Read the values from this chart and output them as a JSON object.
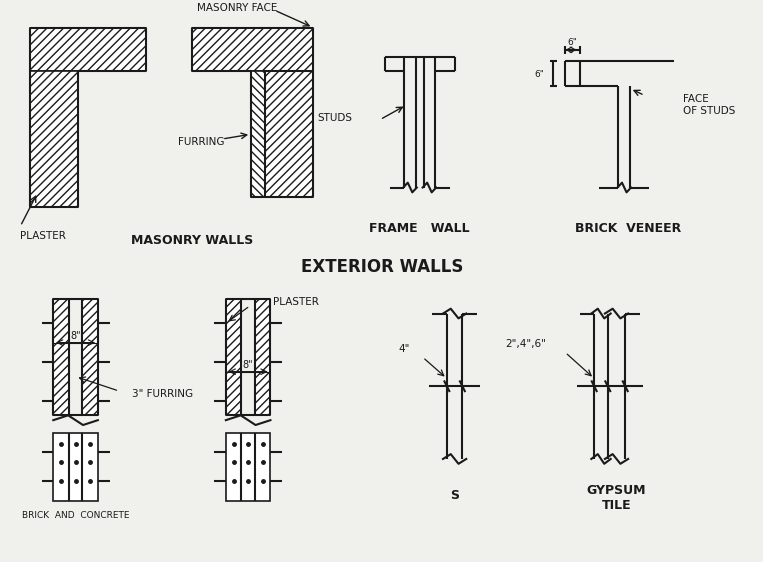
{
  "bg_color": "#f0f0ec",
  "line_color": "#1a1a1a",
  "title": "EXTERIOR WALLS",
  "labels": {
    "masonry_walls": "MASONRY WALLS",
    "frame_wall": "FRAME   WALL",
    "brick_veneer": "BRICK  VENEER",
    "masonry_face": "MASONRY FACE",
    "furring": "FURRING",
    "plaster": "PLASTER",
    "studs": "STUDS",
    "face_of_studs": "FACE\nOF STUDS",
    "8inch": "8\"",
    "3inch_furring": "3\" FURRING",
    "plaster2": "PLASTER",
    "8inch2": "8\"",
    "4inch": "4\"",
    "246": "2\",4\",6\"",
    "s_label": "S",
    "gypsum_tile": "GYPSUM\nTILE",
    "6h": "6\"",
    "6v": "6\"",
    "brick_concrete": "BRICK  AND  CONCRETE"
  }
}
